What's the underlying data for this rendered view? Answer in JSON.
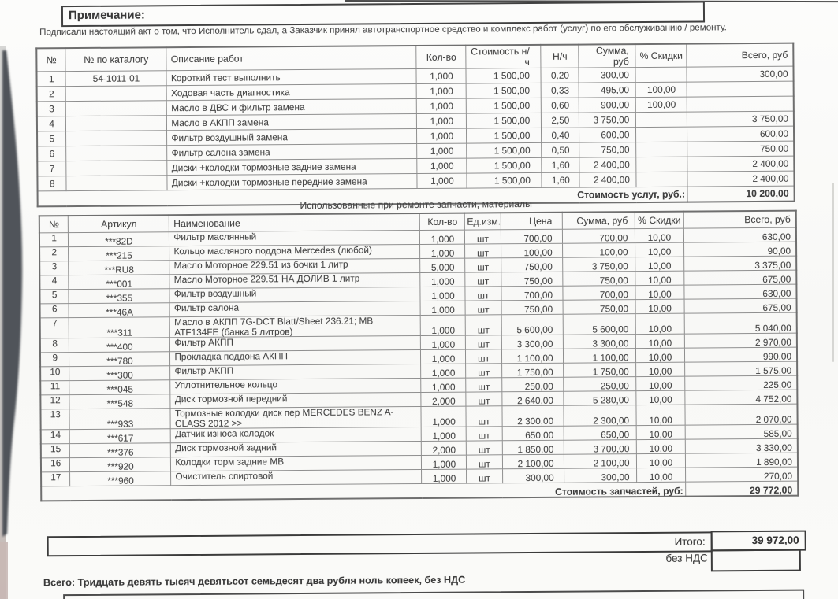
{
  "note": {
    "title": "Примечание:"
  },
  "intro": "Подписали настоящий акт о том, что Исполнитель сдал, а Заказчик принял автотранспортное средство и комплекс работ (услуг) по его обслуживанию / ремонту.",
  "works_table": {
    "headers": [
      "№",
      "№ по каталогу",
      "Описание работ",
      "Кол-во",
      "Стоимость н/ч",
      "Н/ч",
      "Сумма, руб",
      "% Скидки",
      "Всего, руб"
    ],
    "rows": [
      [
        "1",
        "54-1011-01",
        "Короткий тест выполнить",
        "1,000",
        "1 500,00",
        "0,20",
        "300,00",
        "",
        "300,00"
      ],
      [
        "2",
        "",
        "Ходовая часть диагностика",
        "1,000",
        "1 500,00",
        "0,33",
        "495,00",
        "100,00",
        ""
      ],
      [
        "3",
        "",
        "Масло в ДВС и фильтр замена",
        "1,000",
        "1 500,00",
        "0,60",
        "900,00",
        "100,00",
        ""
      ],
      [
        "4",
        "",
        "Масло в АКПП замена",
        "1,000",
        "1 500,00",
        "2,50",
        "3 750,00",
        "",
        "3 750,00"
      ],
      [
        "5",
        "",
        "Фильтр воздушный замена",
        "1,000",
        "1 500,00",
        "0,40",
        "600,00",
        "",
        "600,00"
      ],
      [
        "6",
        "",
        "Фильтр салона замена",
        "1,000",
        "1 500,00",
        "0,50",
        "750,00",
        "",
        "750,00"
      ],
      [
        "7",
        "",
        "Диски +колодки тормозные задние замена",
        "1,000",
        "1 500,00",
        "1,60",
        "2 400,00",
        "",
        "2 400,00"
      ],
      [
        "8",
        "",
        "Диски +колодки тормозные передние замена",
        "1,000",
        "1 500,00",
        "1,60",
        "2 400,00",
        "",
        "2 400,00"
      ]
    ],
    "footer_label": "Стоимость услуг, руб.:",
    "footer_value": "10 200,00"
  },
  "parts_table": {
    "title": "Использованные при ремонте запчасти, материалы",
    "headers": [
      "№",
      "Артикул",
      "Наименование",
      "Кол-во",
      "Ед.изм.",
      "Цена",
      "Сумма, руб",
      "% Скидки",
      "Всего, руб"
    ],
    "rows": [
      [
        "1",
        "***82D",
        "Фильтр маслянный",
        "1,000",
        "шт",
        "700,00",
        "700,00",
        "10,00",
        "630,00"
      ],
      [
        "2",
        "***215",
        "Кольцо масляного поддона Mercedes (любой)",
        "1,000",
        "шт",
        "100,00",
        "100,00",
        "10,00",
        "90,00"
      ],
      [
        "3",
        "***RU8",
        "Масло Моторное 229.51 из бочки 1 литр",
        "5,000",
        "шт",
        "750,00",
        "3 750,00",
        "10,00",
        "3 375,00"
      ],
      [
        "4",
        "***001",
        "Масло Моторное 229.51 НА ДОЛИВ 1 литр",
        "1,000",
        "шт",
        "750,00",
        "750,00",
        "10,00",
        "675,00"
      ],
      [
        "5",
        "***355",
        "Фильтр воздушный",
        "1,000",
        "шт",
        "700,00",
        "700,00",
        "10,00",
        "630,00"
      ],
      [
        "6",
        "***46A",
        "Фильтр салона",
        "1,000",
        "шт",
        "750,00",
        "750,00",
        "10,00",
        "675,00"
      ],
      [
        "7",
        "***311",
        "Масло в АКПП 7G-DCT Blatt/Sheet 236.21; МВ ATF134FE (банка 5 литров)",
        "1,000",
        "шт",
        "5 600,00",
        "5 600,00",
        "10,00",
        "5 040,00"
      ],
      [
        "8",
        "***400",
        "Фильтр АКПП",
        "1,000",
        "шт",
        "3 300,00",
        "3 300,00",
        "10,00",
        "2 970,00"
      ],
      [
        "9",
        "***780",
        "Прокладка поддона АКПП",
        "1,000",
        "шт",
        "1 100,00",
        "1 100,00",
        "10,00",
        "990,00"
      ],
      [
        "10",
        "***300",
        "Фильтр АКПП",
        "1,000",
        "шт",
        "1 750,00",
        "1 750,00",
        "10,00",
        "1 575,00"
      ],
      [
        "11",
        "***045",
        "Уплотнительное кольцо",
        "1,000",
        "шт",
        "250,00",
        "250,00",
        "10,00",
        "225,00"
      ],
      [
        "12",
        "***548",
        "Диск тормозной передний",
        "2,000",
        "шт",
        "2 640,00",
        "5 280,00",
        "10,00",
        "4 752,00"
      ],
      [
        "13",
        "***933",
        "Тормозные колодки диск пер MERCEDES BENZ A-CLASS 2012 >>",
        "1,000",
        "шт",
        "2 300,00",
        "2 300,00",
        "10,00",
        "2 070,00"
      ],
      [
        "14",
        "***617",
        "Датчик износа колодок",
        "1,000",
        "шт",
        "650,00",
        "650,00",
        "10,00",
        "585,00"
      ],
      [
        "15",
        "***376",
        "Диск тормозной задний",
        "2,000",
        "шт",
        "1 850,00",
        "3 700,00",
        "10,00",
        "3 330,00"
      ],
      [
        "16",
        "***920",
        "Колодки торм задние МВ",
        "1,000",
        "шт",
        "2 100,00",
        "2 100,00",
        "10,00",
        "1 890,00"
      ],
      [
        "17",
        "***960",
        "Очиститель спиртовой",
        "1,000",
        "шт",
        "300,00",
        "300,00",
        "10,00",
        "270,00"
      ]
    ],
    "footer_label": "Стоимость запчастей, руб:",
    "footer_value": "29 772,00"
  },
  "totals": {
    "label": "Итого:",
    "value": "39 972,00",
    "vat_label": "без НДС"
  },
  "summary": "Всего: Тридцать девять тысяч девятьсот семьдесят два рубля ноль копеек, без НДС"
}
